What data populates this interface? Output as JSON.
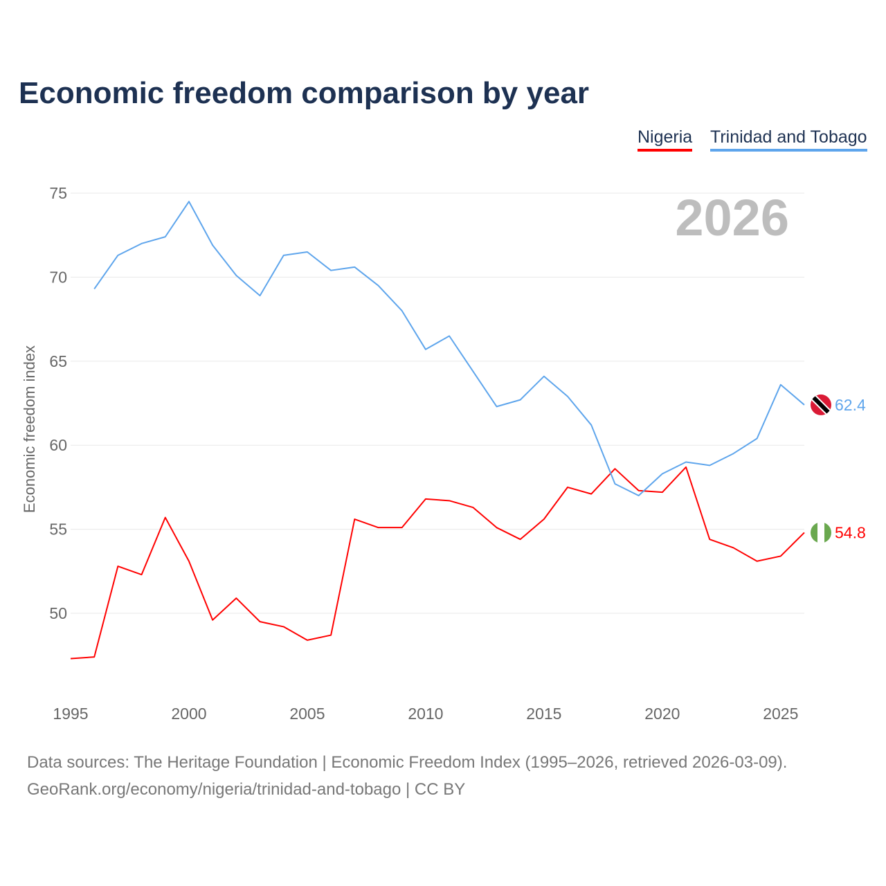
{
  "title": "Economic freedom comparison by year",
  "legend": [
    "Nigeria",
    "Trinidad and Tobago"
  ],
  "source_line1": "Data sources: The Heritage Foundation | Economic Freedom Index (1995–2026, retrieved 2026-03-09).",
  "source_line2": "GeoRank.org/economy/nigeria/trinidad-and-tobago | CC BY",
  "year_watermark": "2026",
  "chart_data": {
    "type": "line",
    "title": "Economic freedom comparison by year",
    "xlabel": "",
    "ylabel": "Economic freedom index",
    "xlim": [
      1995,
      2026
    ],
    "ylim": [
      45.5,
      77
    ],
    "yticks": [
      50,
      55,
      60,
      65,
      70,
      75
    ],
    "xticks": [
      1995,
      2000,
      2005,
      2010,
      2015,
      2020,
      2025
    ],
    "grid": true,
    "legend_position": "top-right",
    "series": [
      {
        "name": "Nigeria",
        "color": "#ff0000",
        "end_label": "54.8",
        "flag": "nigeria",
        "x": [
          1995,
          1996,
          1997,
          1998,
          1999,
          2000,
          2001,
          2002,
          2003,
          2004,
          2005,
          2006,
          2007,
          2008,
          2009,
          2010,
          2011,
          2012,
          2013,
          2014,
          2015,
          2016,
          2017,
          2018,
          2019,
          2020,
          2021,
          2022,
          2023,
          2024,
          2025,
          2026
        ],
        "values": [
          47.3,
          47.4,
          52.8,
          52.3,
          55.7,
          53.1,
          49.6,
          50.9,
          49.5,
          49.2,
          48.4,
          48.7,
          55.6,
          55.1,
          55.1,
          56.8,
          56.7,
          56.3,
          55.1,
          54.4,
          55.6,
          57.5,
          57.1,
          58.6,
          57.3,
          57.2,
          58.7,
          54.4,
          53.9,
          53.1,
          53.4,
          54.8
        ]
      },
      {
        "name": "Trinidad and Tobago",
        "color": "#5ea5ec",
        "end_label": "62.4",
        "flag": "trinidad",
        "x": [
          1996,
          1997,
          1998,
          1999,
          2000,
          2001,
          2002,
          2003,
          2004,
          2005,
          2006,
          2007,
          2008,
          2009,
          2010,
          2011,
          2012,
          2013,
          2014,
          2015,
          2016,
          2017,
          2018,
          2019,
          2020,
          2021,
          2022,
          2023,
          2024,
          2025,
          2026
        ],
        "values": [
          69.3,
          71.3,
          72.0,
          72.4,
          74.5,
          71.9,
          70.1,
          68.9,
          71.3,
          71.5,
          70.4,
          70.6,
          69.5,
          68.0,
          65.7,
          66.5,
          64.4,
          62.3,
          62.7,
          64.1,
          62.9,
          61.2,
          57.7,
          57.0,
          58.3,
          59.0,
          58.8,
          59.5,
          60.4,
          63.6,
          62.4
        ]
      }
    ]
  }
}
